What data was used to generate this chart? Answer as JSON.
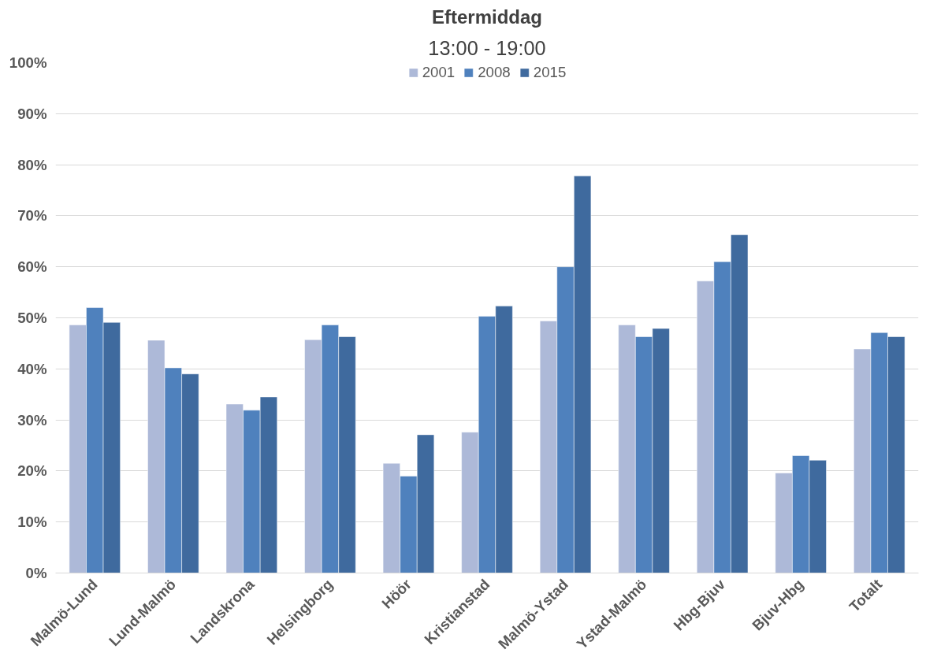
{
  "chart_data": {
    "type": "bar",
    "title": "Eftermiddag",
    "subtitle": "13:00 - 19:00",
    "categories": [
      "Malmö-Lund",
      "Lund-Malmö",
      "Landskrona",
      "Helsingborg",
      "Höör",
      "Kristianstad",
      "Malmö-Ystad",
      "Ystad-Malmö",
      "Hbg-Bjuv",
      "Bjuv-Hbg",
      "Totalt"
    ],
    "series": [
      {
        "name": "2001",
        "color": "#adb9d8",
        "values": [
          48.6,
          45.6,
          33.1,
          45.7,
          21.5,
          27.6,
          49.4,
          48.6,
          57.2,
          19.6,
          43.9
        ]
      },
      {
        "name": "2008",
        "color": "#4f81bd",
        "values": [
          52.0,
          40.2,
          31.9,
          48.6,
          19.0,
          50.3,
          60.0,
          46.3,
          61.0,
          23.0,
          47.1
        ]
      },
      {
        "name": "2015",
        "color": "#3f6a9e",
        "values": [
          49.1,
          39.0,
          34.5,
          46.3,
          27.1,
          52.3,
          77.8,
          47.9,
          66.3,
          22.1,
          46.3
        ]
      }
    ],
    "ylim": [
      0,
      100
    ],
    "yticks": [
      {
        "value": 0,
        "label": "0%"
      },
      {
        "value": 10,
        "label": "10%"
      },
      {
        "value": 20,
        "label": "20%"
      },
      {
        "value": 30,
        "label": "30%"
      },
      {
        "value": 40,
        "label": "40%"
      },
      {
        "value": 50,
        "label": "50%"
      },
      {
        "value": 60,
        "label": "60%"
      },
      {
        "value": 70,
        "label": "70%"
      },
      {
        "value": 80,
        "label": "80%"
      },
      {
        "value": 90,
        "label": "90%"
      },
      {
        "value": 100,
        "label": "100%"
      }
    ],
    "grid": "y",
    "legend": "top"
  }
}
